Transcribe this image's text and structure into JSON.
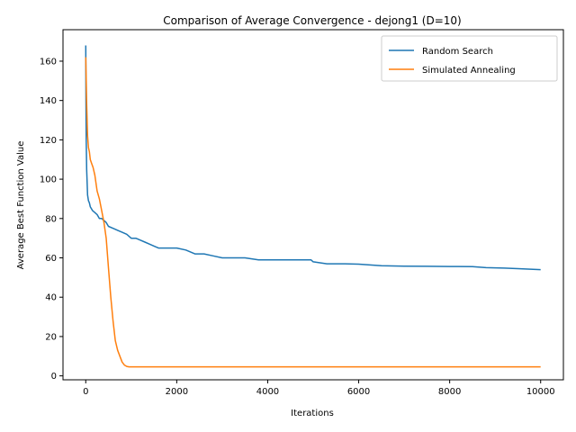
{
  "chart_data": {
    "type": "line",
    "title": "Comparison of Average Convergence - dejong1 (D=10)",
    "xlabel": "Iterations",
    "ylabel": "Average Best Function Value",
    "xlim": [
      -500,
      10500
    ],
    "ylim": [
      -2,
      176
    ],
    "xticks": [
      0,
      2000,
      4000,
      6000,
      8000,
      10000
    ],
    "yticks": [
      0,
      20,
      40,
      60,
      80,
      100,
      120,
      140,
      160
    ],
    "grid": false,
    "legend_position": "upper right",
    "series": [
      {
        "name": "Random Search",
        "color": "#1f77b4",
        "x": [
          0,
          5,
          10,
          20,
          40,
          60,
          80,
          100,
          150,
          200,
          250,
          300,
          350,
          400,
          450,
          500,
          600,
          700,
          800,
          900,
          1000,
          1100,
          1200,
          1300,
          1400,
          1500,
          1600,
          1800,
          2000,
          2200,
          2400,
          2600,
          2800,
          3000,
          3200,
          3500,
          3800,
          4000,
          4500,
          4950,
          5000,
          5300,
          5700,
          6000,
          6500,
          7000,
          7500,
          8000,
          8500,
          8800,
          9200,
          9500,
          10000
        ],
        "y": [
          168,
          140,
          120,
          105,
          92,
          89,
          88,
          86,
          84,
          83,
          82,
          80,
          80,
          79,
          78,
          76,
          75,
          74,
          73,
          72,
          70,
          70,
          69,
          68,
          67,
          66,
          65,
          65,
          65,
          64,
          62,
          62,
          61,
          60,
          60,
          60,
          59,
          59,
          59,
          59,
          58,
          57,
          57,
          56.8,
          56,
          55.8,
          55.7,
          55.6,
          55.5,
          55,
          54.8,
          54.5,
          54
        ]
      },
      {
        "name": "Simulated Annealing",
        "color": "#ff7f0e",
        "x": [
          0,
          20,
          40,
          60,
          80,
          100,
          130,
          160,
          200,
          250,
          300,
          350,
          400,
          450,
          500,
          550,
          600,
          650,
          700,
          750,
          800,
          850,
          900,
          950,
          1000,
          2000,
          4000,
          6000,
          8000,
          10000
        ],
        "y": [
          162,
          138,
          122,
          116,
          114,
          110,
          108,
          106,
          102,
          94,
          90,
          84,
          78,
          70,
          55,
          40,
          28,
          18,
          13,
          10,
          7,
          5.5,
          4.8,
          4.6,
          4.6,
          4.6,
          4.6,
          4.6,
          4.6,
          4.6
        ]
      }
    ]
  }
}
